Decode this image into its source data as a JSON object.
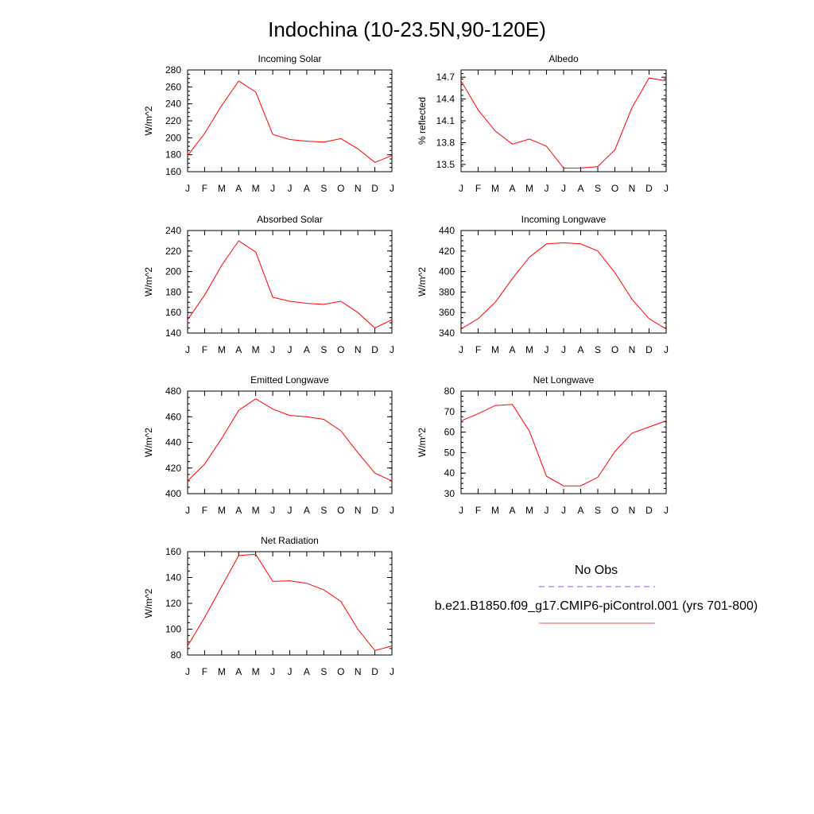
{
  "figure": {
    "title": "Indochina (10-23.5N,90-120E)",
    "legend": {
      "entries": [
        {
          "label": "No Obs",
          "color": "#6666ff",
          "style": "dashed"
        },
        {
          "label": "b.e21.B1850.f09_g17.CMIP6-piControl.001 (yrs 701-800)",
          "color": "#e05050",
          "style": "solid"
        }
      ]
    }
  },
  "chart_data": [
    {
      "type": "line",
      "title": "Incoming Solar",
      "ylabel": "W/m^2",
      "categories": [
        "J",
        "F",
        "M",
        "A",
        "M",
        "J",
        "J",
        "A",
        "S",
        "O",
        "N",
        "D",
        "J"
      ],
      "ylim": [
        160,
        280
      ],
      "yticks": [
        160,
        180,
        200,
        220,
        240,
        260,
        280
      ],
      "series": [
        {
          "values": [
            179,
            205,
            238,
            267,
            254,
            204,
            198,
            196,
            195,
            199,
            187,
            171,
            179
          ],
          "color": "#ff0000"
        }
      ]
    },
    {
      "type": "line",
      "title": "Albedo",
      "ylabel": "% reflected",
      "categories": [
        "J",
        "F",
        "M",
        "A",
        "M",
        "J",
        "J",
        "A",
        "S",
        "O",
        "N",
        "D",
        "J"
      ],
      "ylim": [
        13.4,
        14.8
      ],
      "yticks": [
        13.5,
        13.8,
        14.1,
        14.4,
        14.7
      ],
      "series": [
        {
          "values": [
            14.65,
            14.25,
            13.96,
            13.78,
            13.85,
            13.75,
            13.45,
            13.45,
            13.47,
            13.7,
            14.28,
            14.69,
            14.65
          ],
          "color": "#ff0000"
        }
      ]
    },
    {
      "type": "line",
      "title": "Absorbed Solar",
      "ylabel": "W/m^2",
      "categories": [
        "J",
        "F",
        "M",
        "A",
        "M",
        "J",
        "J",
        "A",
        "S",
        "O",
        "N",
        "D",
        "J"
      ],
      "ylim": [
        140,
        240
      ],
      "yticks": [
        140,
        160,
        180,
        200,
        220,
        240
      ],
      "series": [
        {
          "values": [
            153,
            177,
            206,
            230,
            219,
            175,
            171,
            169,
            168,
            171,
            160,
            145,
            153
          ],
          "color": "#ff0000"
        }
      ]
    },
    {
      "type": "line",
      "title": "Incoming Longwave",
      "ylabel": "W/m^2",
      "categories": [
        "J",
        "F",
        "M",
        "A",
        "M",
        "J",
        "J",
        "A",
        "S",
        "O",
        "N",
        "D",
        "J"
      ],
      "ylim": [
        340,
        440
      ],
      "yticks": [
        340,
        360,
        380,
        400,
        420,
        440
      ],
      "series": [
        {
          "values": [
            344,
            354,
            370,
            393,
            414,
            427,
            428,
            427,
            420,
            399,
            373,
            354,
            344
          ],
          "color": "#ff0000"
        }
      ]
    },
    {
      "type": "line",
      "title": "Emitted Longwave",
      "ylabel": "W/m^2",
      "categories": [
        "J",
        "F",
        "M",
        "A",
        "M",
        "J",
        "J",
        "A",
        "S",
        "O",
        "N",
        "D",
        "J"
      ],
      "ylim": [
        400,
        480
      ],
      "yticks": [
        400,
        420,
        440,
        460,
        480
      ],
      "series": [
        {
          "values": [
            410,
            423,
            443,
            465,
            474,
            466,
            461,
            460,
            458,
            449,
            432,
            416,
            410
          ],
          "color": "#ff0000"
        }
      ]
    },
    {
      "type": "line",
      "title": "Net Longwave",
      "ylabel": "W/m^2",
      "categories": [
        "J",
        "F",
        "M",
        "A",
        "M",
        "J",
        "J",
        "A",
        "S",
        "O",
        "N",
        "D",
        "J"
      ],
      "ylim": [
        30,
        80
      ],
      "yticks": [
        30,
        40,
        50,
        60,
        70,
        80
      ],
      "series": [
        {
          "values": [
            65.5,
            69,
            73,
            73.5,
            60.5,
            38.5,
            33.8,
            33.8,
            38,
            50.5,
            59.5,
            62.5,
            65.5
          ],
          "color": "#ff0000"
        }
      ]
    },
    {
      "type": "line",
      "title": "Net Radiation",
      "ylabel": "W/m^2",
      "categories": [
        "J",
        "F",
        "M",
        "A",
        "M",
        "J",
        "J",
        "A",
        "S",
        "O",
        "N",
        "D",
        "J"
      ],
      "ylim": [
        80,
        160
      ],
      "yticks": [
        80,
        100,
        120,
        140,
        160
      ],
      "series": [
        {
          "values": [
            87,
            109,
            133,
            157,
            158,
            137,
            137.5,
            135.5,
            130.5,
            121.5,
            100,
            83.5,
            87
          ],
          "color": "#ff0000"
        }
      ]
    }
  ]
}
